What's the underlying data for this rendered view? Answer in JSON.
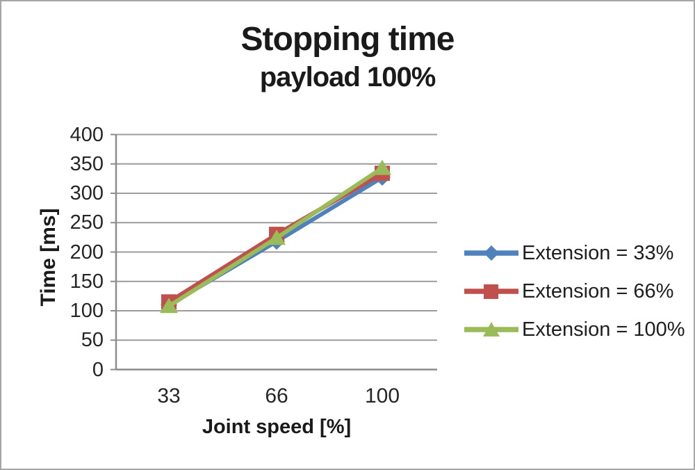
{
  "chart_data": {
    "type": "line",
    "title": "Stopping time",
    "subtitle": "payload 100%",
    "xlabel": "Joint speed [%]",
    "ylabel": "Time [ms]",
    "categories": [
      "33",
      "66",
      "100"
    ],
    "yticks": [
      0,
      50,
      100,
      150,
      200,
      250,
      300,
      350,
      400
    ],
    "ylim": [
      0,
      400
    ],
    "grid": true,
    "legend_position": "right",
    "series": [
      {
        "name": "Extension = 33%",
        "color": "#4F81BD",
        "marker": "diamond",
        "values": [
          110,
          218,
          327
        ]
      },
      {
        "name": "Extension = 66%",
        "color": "#C0504D",
        "marker": "square",
        "values": [
          115,
          230,
          334
        ]
      },
      {
        "name": "Extension = 100%",
        "color": "#9BBB59",
        "marker": "triangle",
        "values": [
          108,
          224,
          343
        ]
      }
    ],
    "colors": {
      "grid": "#9c9c9c",
      "axis": "#8c8c8c",
      "text": "#1f1f1f",
      "frame_border": "#a6a6a6",
      "background": "#ffffff"
    }
  }
}
